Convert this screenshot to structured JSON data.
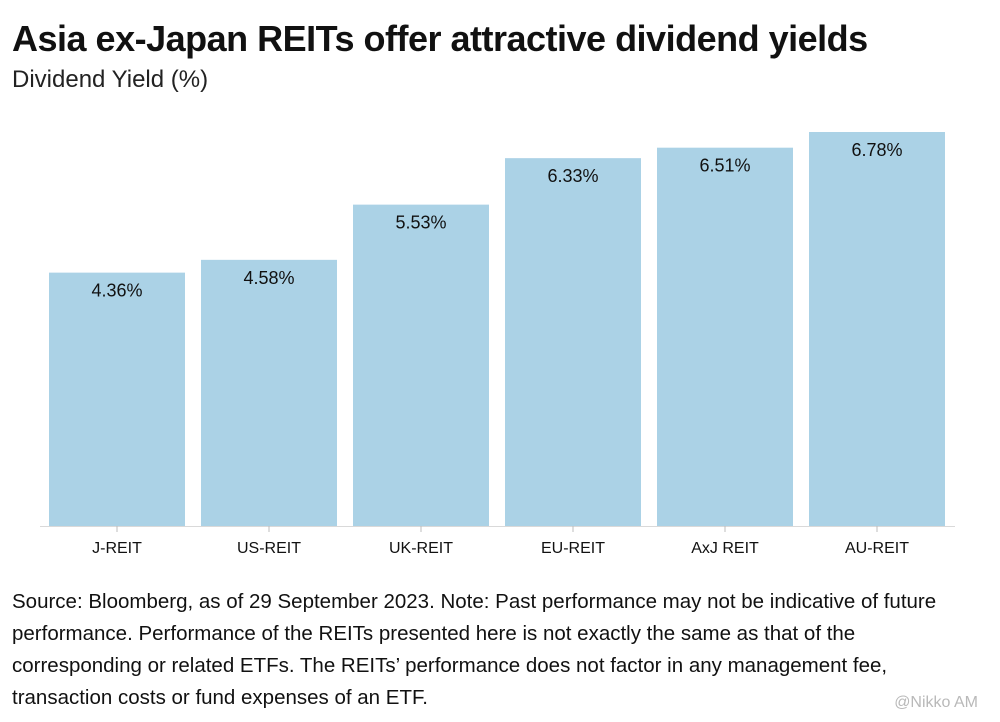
{
  "chart_data": {
    "type": "bar",
    "title": "Asia ex-Japan REITs offer attractive dividend yields",
    "subtitle": "Dividend Yield (%)",
    "xlabel": "",
    "ylabel": "Dividend Yield (%)",
    "categories": [
      "J-REIT",
      "US-REIT",
      "UK-REIT",
      "EU-REIT",
      "AxJ REIT",
      "AU-REIT"
    ],
    "values": [
      4.36,
      4.58,
      5.53,
      6.33,
      6.51,
      6.78
    ],
    "value_labels": [
      "4.36%",
      "4.58%",
      "5.53%",
      "6.33%",
      "6.51%",
      "6.78%"
    ],
    "ylim": [
      0,
      6.78
    ],
    "grid": false,
    "bar_color": "#abd2e6"
  },
  "footnote": "Source: Bloomberg, as of 29 September 2023. Note: Past performance may not be indicative of future performance. Performance of the REITs presented here is not exactly the same as that of the corresponding or related ETFs. The REITs’ performance does not factor in any management fee, transaction costs or fund expenses of an ETF.",
  "watermark": "@Nikko AM"
}
